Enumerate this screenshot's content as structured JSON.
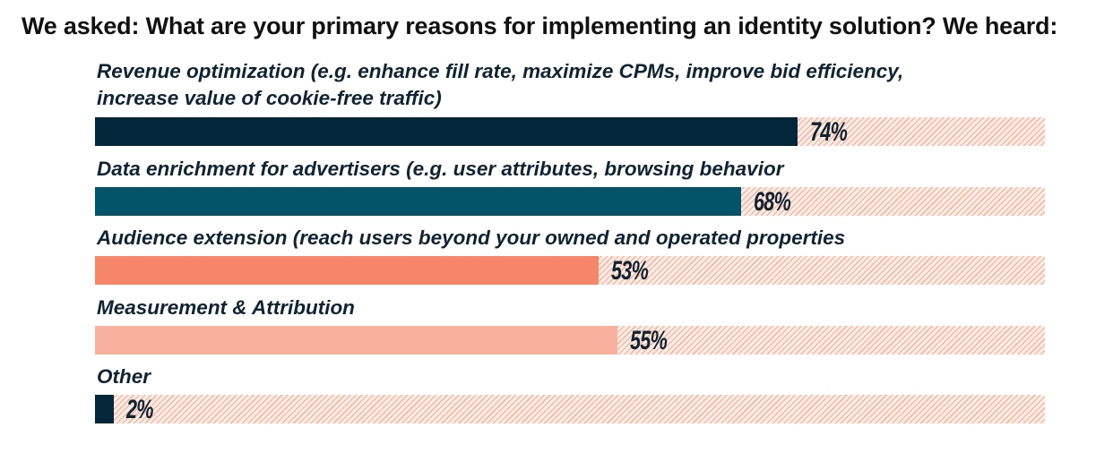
{
  "title": "We asked: What are your primary reasons for implementing an identity solution? We heard:",
  "chart_data": {
    "type": "bar",
    "orientation": "horizontal",
    "xlim": [
      0,
      100
    ],
    "unit": "%",
    "categories": [
      "Revenue optimization (e.g. enhance fill rate, maximize CPMs, improve bid efficiency,",
      "Data enrichment for advertisers (e.g. user attributes, browsing behavior",
      "Audience extension (reach users beyond your owned and operated properties",
      "Measurement & Attribution",
      "Other"
    ],
    "category_line2": [
      "increase value of cookie-free traffic)",
      "",
      "",
      "",
      ""
    ],
    "values": [
      74,
      68,
      53,
      55,
      2
    ],
    "value_labels": [
      "74%",
      "68%",
      "53%",
      "55%",
      "2%"
    ],
    "colors": [
      "#03263b",
      "#035468",
      "#f5866a",
      "#f8b19c",
      "#03263b"
    ],
    "track_colors": [
      "#fdeee8",
      "#f6b8a4"
    ]
  }
}
